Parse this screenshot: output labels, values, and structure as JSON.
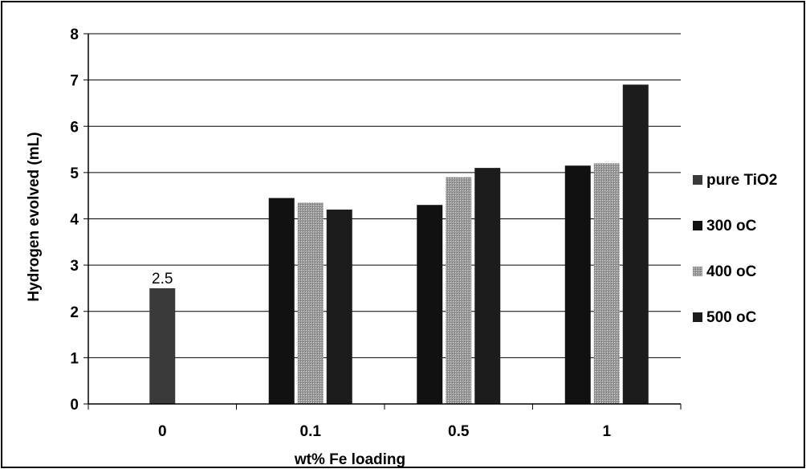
{
  "chart_data": {
    "type": "bar",
    "title": "",
    "xlabel": "wt% Fe loading",
    "ylabel": "Hydrogen evolved (mL)",
    "categories": [
      "0",
      "0.1",
      "0.5",
      "1"
    ],
    "ylim": [
      0,
      8
    ],
    "yticks": [
      "0",
      "1",
      "2",
      "3",
      "4",
      "5",
      "6",
      "7",
      "8"
    ],
    "grid": "horizontal",
    "legend_position": "right",
    "series": [
      {
        "name": "pure TiO2",
        "color": "#3a3a3a",
        "values": [
          2.5,
          null,
          null,
          null
        ],
        "labels": [
          "2.5",
          "",
          "",
          ""
        ]
      },
      {
        "name": "300 oC",
        "color": "#111111",
        "values": [
          null,
          4.45,
          4.3,
          5.15
        ]
      },
      {
        "name": "400 oC",
        "color": "#9a9a9a",
        "values": [
          null,
          4.35,
          4.9,
          5.2
        ]
      },
      {
        "name": "500 oC",
        "color": "#1c1c1c",
        "values": [
          null,
          4.2,
          5.1,
          6.9
        ]
      }
    ]
  }
}
